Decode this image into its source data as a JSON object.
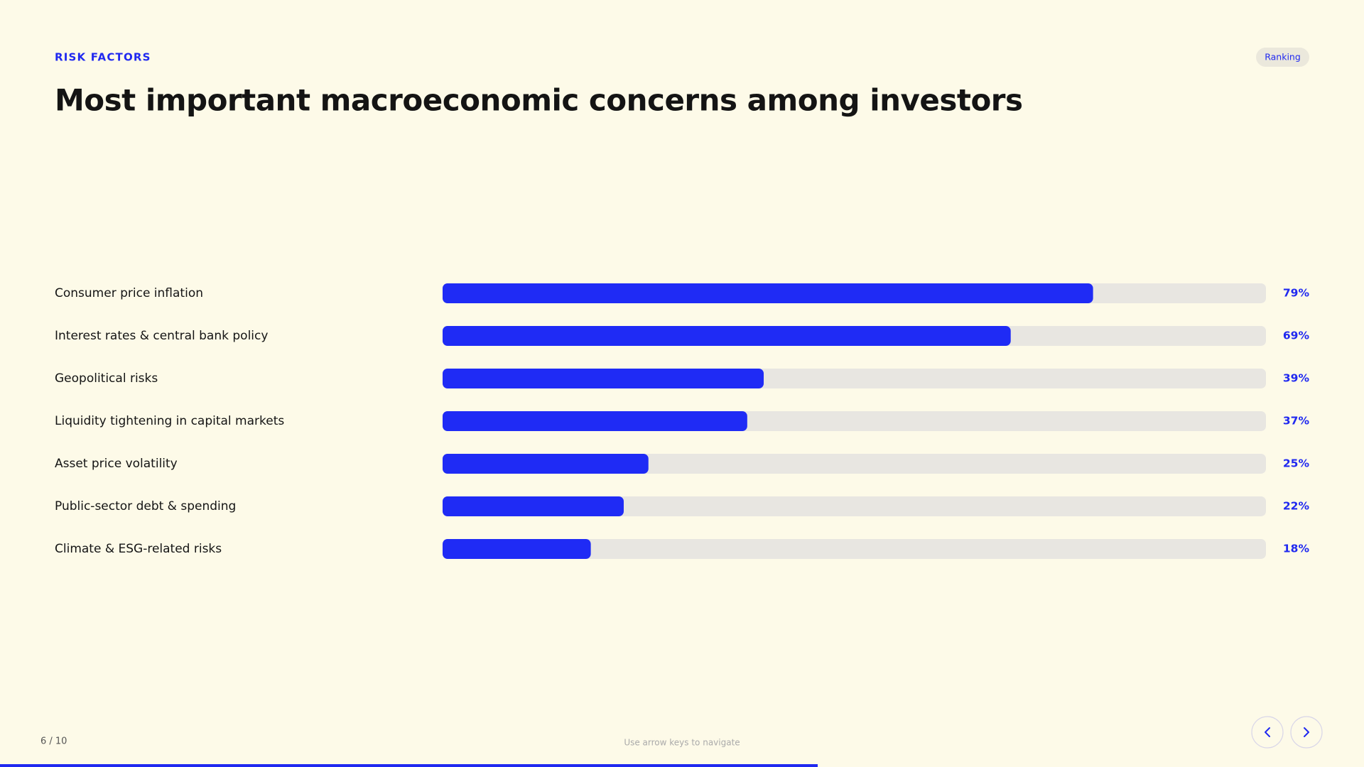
{
  "eyebrow": "RISK FACTORS",
  "badge": "Ranking",
  "chart_data": {
    "type": "bar",
    "orientation": "horizontal",
    "title": "Most important macroeconomic concerns among investors",
    "categories": [
      "Consumer price inflation",
      "Interest rates & central bank policy",
      "Geopolitical risks",
      "Liquidity tightening in capital markets",
      "Asset price volatility",
      "Public-sector debt & spending",
      "Climate & ESG-related risks"
    ],
    "values": [
      79,
      69,
      39,
      37,
      25,
      22,
      18
    ],
    "value_labels": [
      "79%",
      "69%",
      "39%",
      "37%",
      "25%",
      "22%",
      "18%"
    ],
    "color": "#1f2bf5",
    "track_color": "#e8e6e1",
    "xlim": [
      0,
      100
    ]
  },
  "footer": {
    "page": "6 / 10",
    "hint": "Use arrow keys to navigate"
  }
}
